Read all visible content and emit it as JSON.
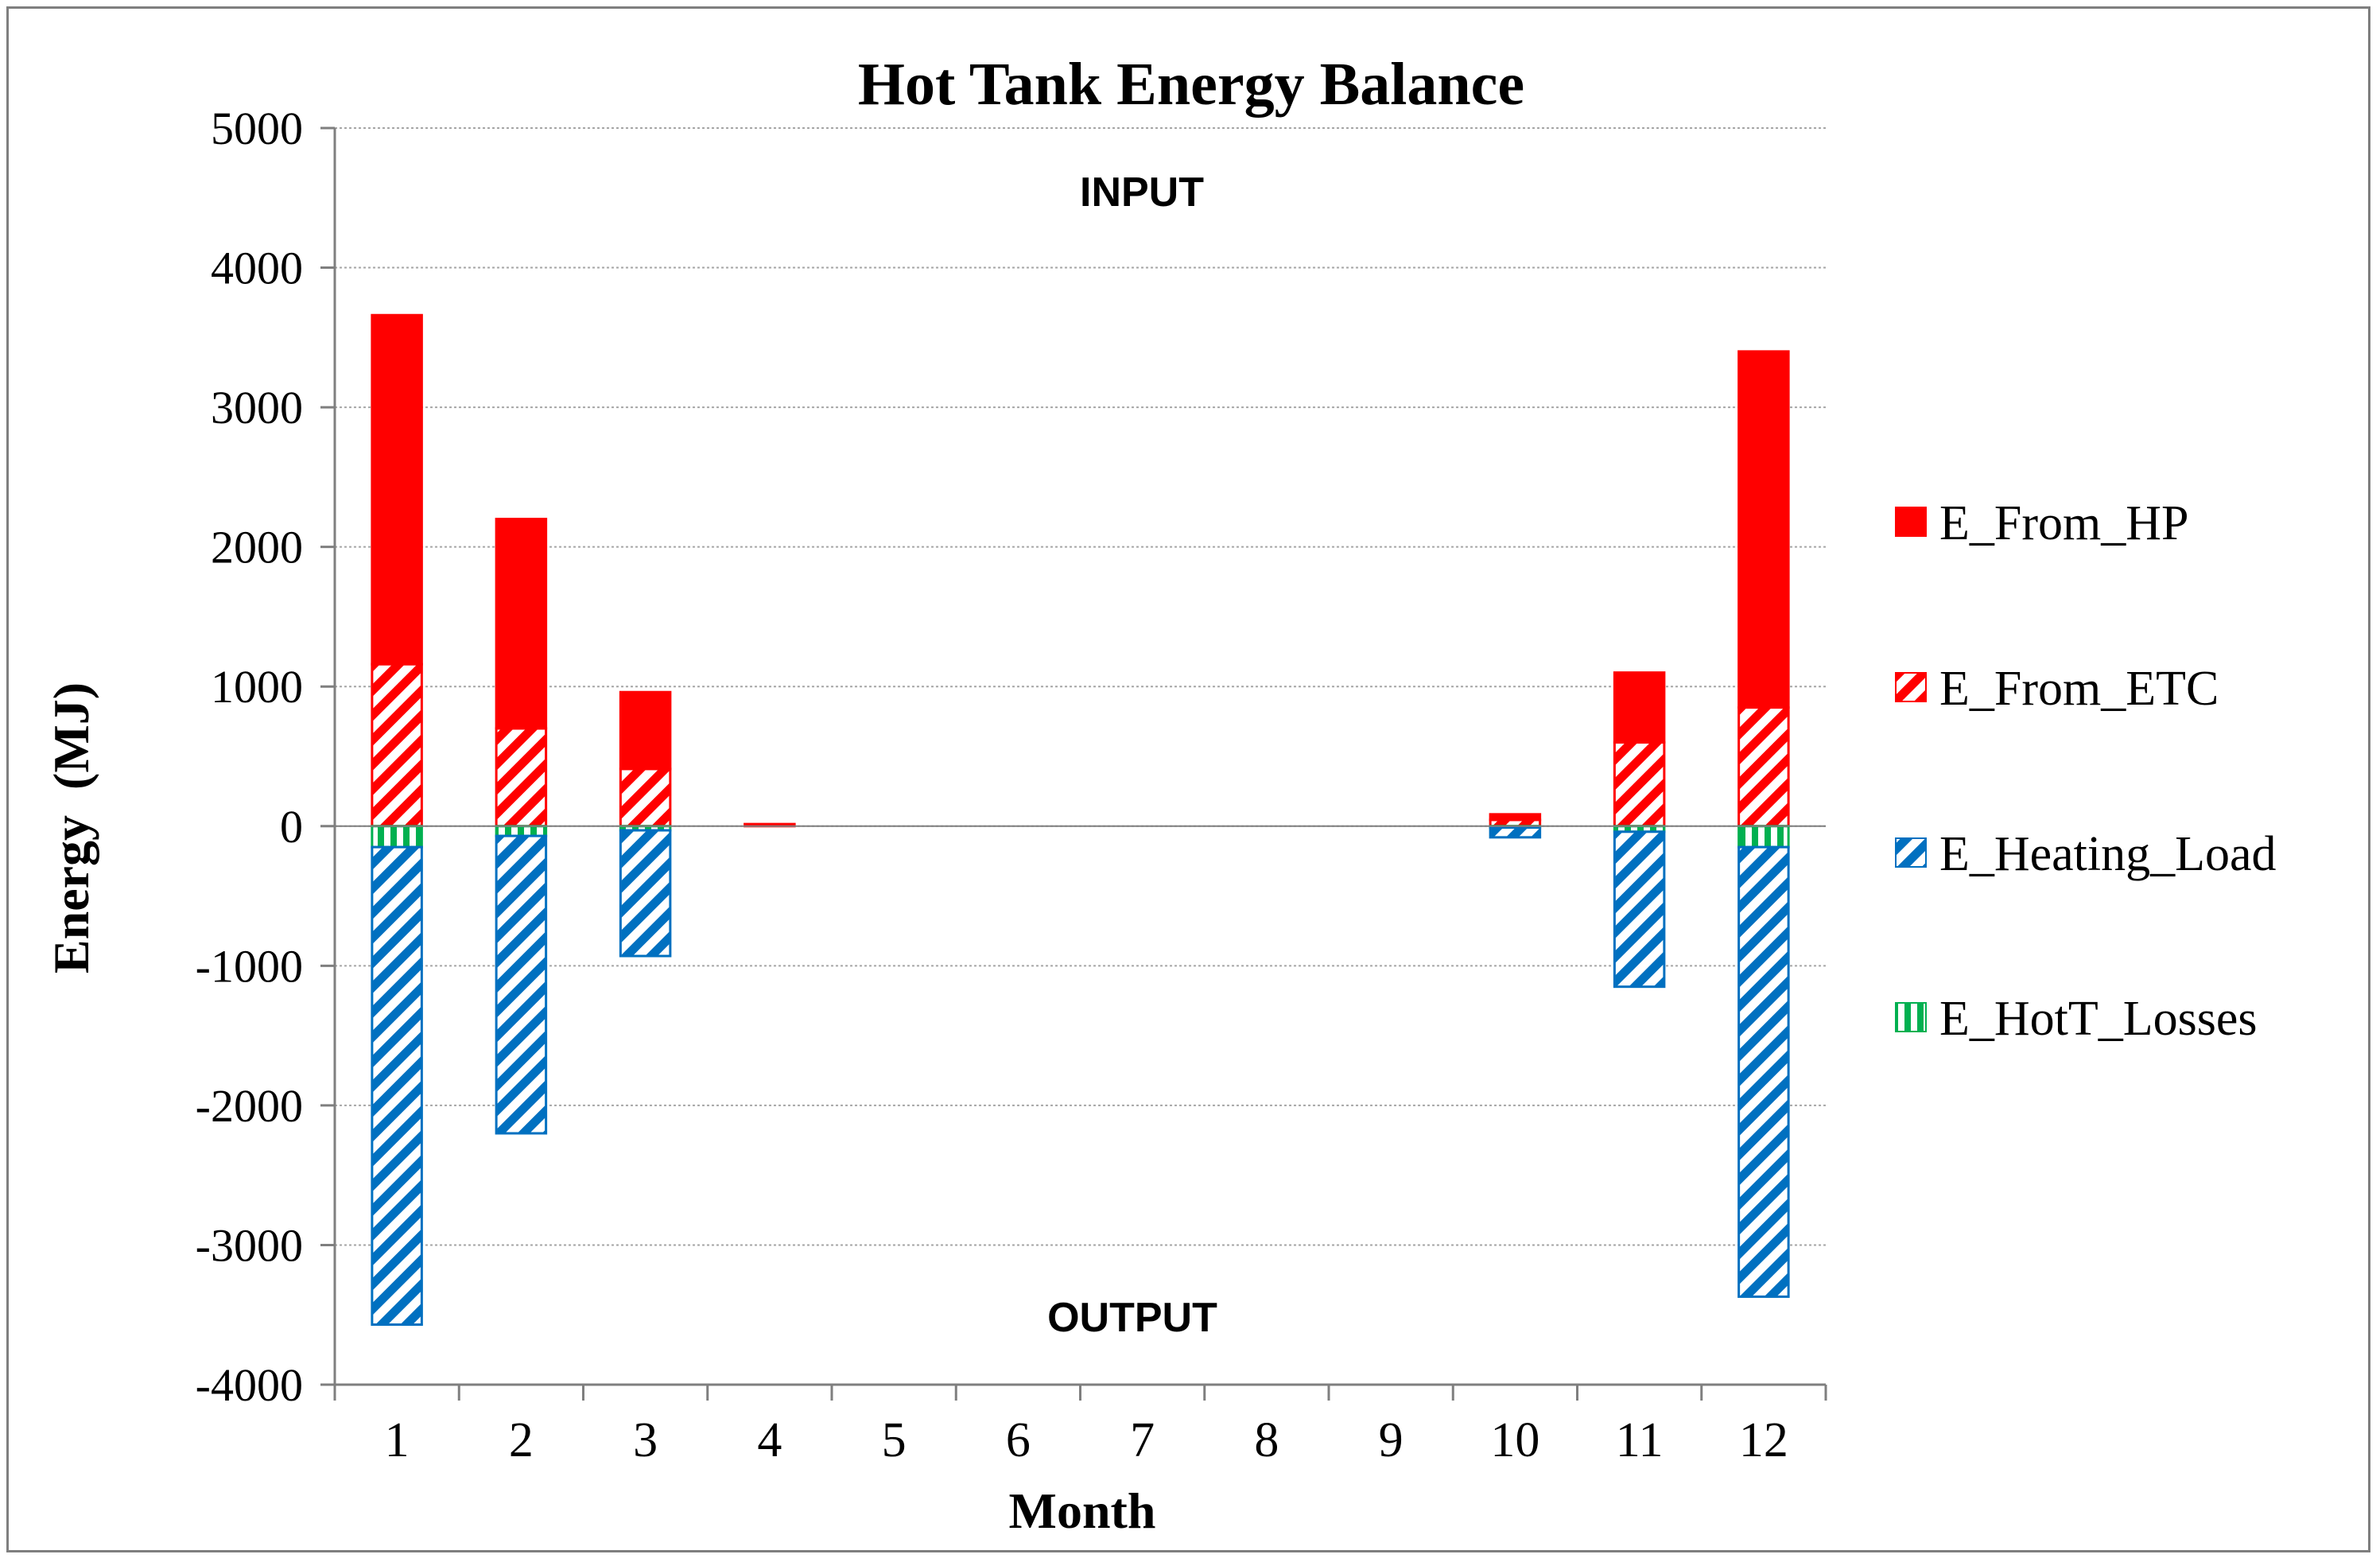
{
  "chart_data": {
    "type": "bar",
    "stacked": true,
    "title": "Hot Tank Energy Balance",
    "xlabel": "Month",
    "ylabel": "Energy  (MJ)",
    "ylim": [
      -4000,
      5000
    ],
    "yticks": [
      5000,
      4000,
      3000,
      2000,
      1000,
      0,
      -1000,
      -2000,
      -3000,
      -4000
    ],
    "grid": true,
    "legend_position": "right",
    "annotations": {
      "input": "INPUT",
      "output": "OUTPUT"
    },
    "categories": [
      "1",
      "2",
      "3",
      "4",
      "5",
      "6",
      "7",
      "8",
      "9",
      "10",
      "11",
      "12"
    ],
    "series": [
      {
        "name": "E_From_HP",
        "color": "#ff0000",
        "pattern": "solid",
        "direction": "positive",
        "values": [
          2500,
          1500,
          550,
          0,
          0,
          0,
          0,
          0,
          0,
          40,
          500,
          2550
        ]
      },
      {
        "name": "E_From_ETC",
        "color": "#ff0000",
        "pattern": "diagonal",
        "direction": "positive",
        "values": [
          1160,
          700,
          410,
          15,
          0,
          0,
          0,
          0,
          0,
          45,
          600,
          850
        ]
      },
      {
        "name": "E_Heating_Load",
        "color": "#0070c0",
        "pattern": "diagonal",
        "direction": "negative",
        "values": [
          -3420,
          -2130,
          -900,
          0,
          0,
          0,
          0,
          0,
          0,
          -70,
          -1110,
          -3220
        ]
      },
      {
        "name": "E_HotT_Losses",
        "color": "#00b050",
        "pattern": "vertical",
        "direction": "negative",
        "values": [
          -150,
          -70,
          -30,
          0,
          0,
          0,
          0,
          0,
          0,
          -10,
          -40,
          -150
        ]
      }
    ]
  }
}
